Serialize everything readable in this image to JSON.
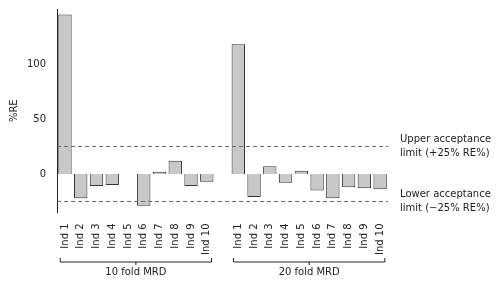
{
  "chart_data": {
    "type": "bar",
    "y_label": "%RE",
    "color": "#c8c8c8",
    "grid": false,
    "ylim": [
      -35,
      150
    ],
    "yticks": [
      0,
      50,
      100
    ],
    "groups": [
      {
        "name": "10 fold MRD",
        "categories": [
          "Ind 1",
          "Ind 2",
          "Ind 3",
          "Ind 4",
          "Ind 5",
          "Ind 6",
          "Ind 7",
          "Ind 8",
          "Ind 9",
          "Ind 10"
        ],
        "values": [
          145,
          -22,
          -11,
          -10,
          0,
          -29,
          2,
          12,
          -11,
          -7
        ]
      },
      {
        "name": "20 fold MRD",
        "categories": [
          "Ind 1",
          "Ind 2",
          "Ind 3",
          "Ind 4",
          "Ind 5",
          "Ind 6",
          "Ind 7",
          "Ind 8",
          "Ind 9",
          "Ind 10"
        ],
        "values": [
          118,
          -21,
          7,
          -8,
          3,
          -15,
          -22,
          -12,
          -13,
          -14
        ]
      }
    ],
    "annotations": [
      {
        "y": 25,
        "text": [
          "Upper acceptance",
          "limit (+25% RE%)"
        ],
        "line_style": "dashed"
      },
      {
        "y": -25,
        "text": [
          "Lower acceptance",
          "limit (−25% RE%)"
        ],
        "line_style": "dashed"
      }
    ]
  }
}
